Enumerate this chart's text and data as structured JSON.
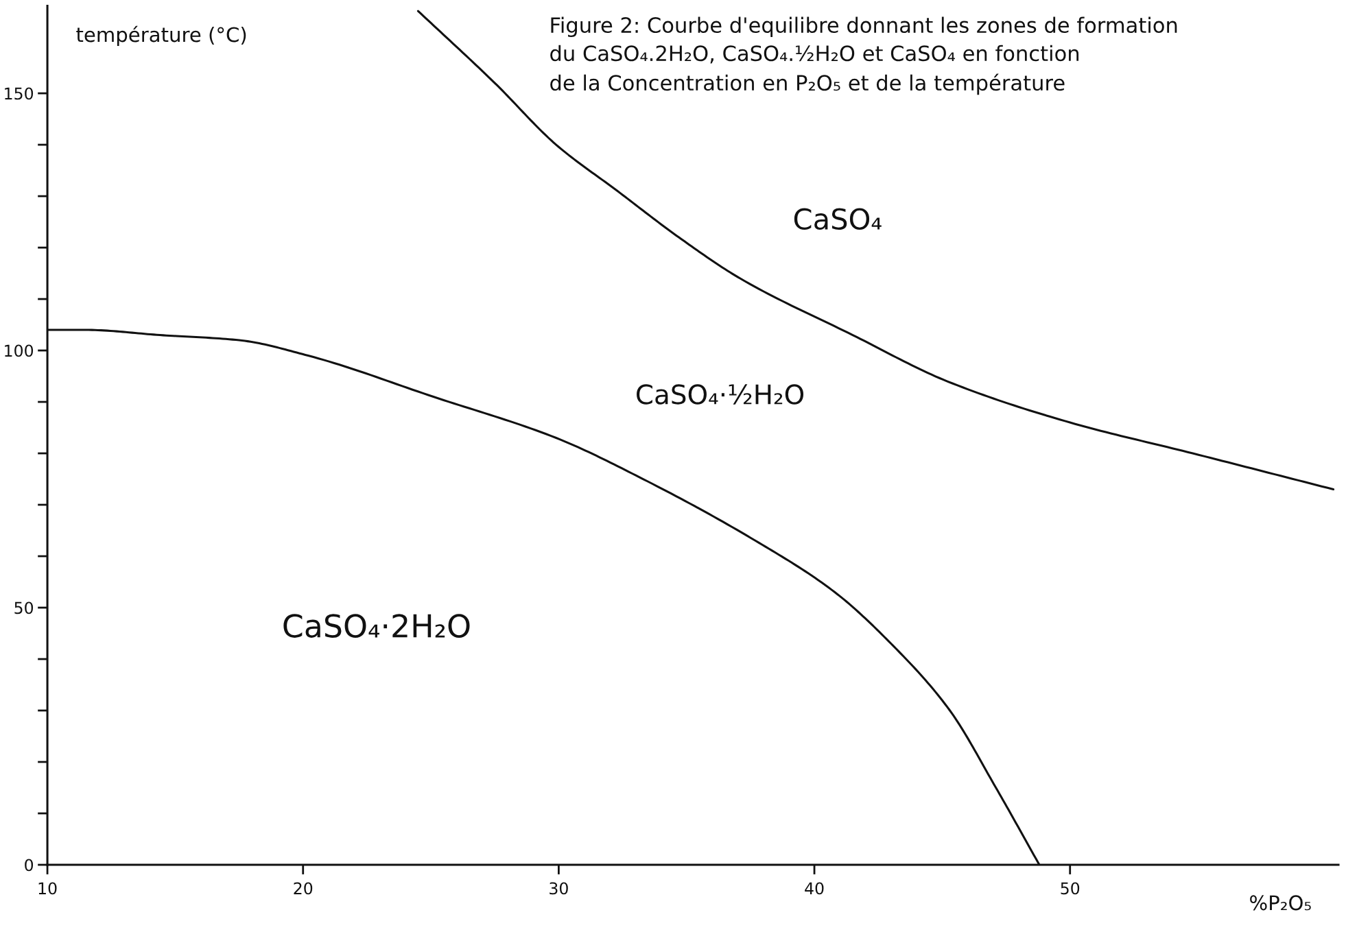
{
  "chart_data": {
    "type": "line",
    "title": "Figure 2: Courbe d'equilibre donnant les zones de formation\ndu CaSO₄.2H₂O, CaSO₄.½H₂O et CaSO₄ en fonction\nde la Concentration en P₂O₅ et de la température",
    "xlabel": "%P₂O₅",
    "ylabel": "température (°C)",
    "xlim": [
      10,
      60.5
    ],
    "ylim": [
      0,
      167
    ],
    "xticks": [
      10,
      20,
      30,
      40,
      50
    ],
    "yticks": [
      0,
      {
        "value": 10,
        "label": null
      },
      {
        "value": 20,
        "label": null
      },
      {
        "value": 30,
        "label": null
      },
      {
        "value": 40,
        "label": null
      },
      50,
      {
        "value": 60,
        "label": null
      },
      {
        "value": 70,
        "label": null
      },
      {
        "value": 80,
        "label": null
      },
      {
        "value": 90,
        "label": null
      },
      100,
      {
        "value": 110,
        "label": null
      },
      {
        "value": 120,
        "label": null
      },
      {
        "value": 130,
        "label": null
      },
      {
        "value": 140,
        "label": null
      },
      150
    ],
    "series": [
      {
        "color": "#111111",
        "x": [
          24.5,
          27.5,
          29.9,
          32.3,
          34.7,
          37.1,
          41.5,
          45.2,
          50.0,
          54.8,
          60.3
        ],
        "values": [
          166,
          152,
          140,
          131,
          122,
          114,
          103,
          94,
          86,
          80,
          73
        ]
      },
      {
        "color": "#111111",
        "x": [
          10,
          11.5,
          14.4,
          17.5,
          20.2,
          25.1,
          29.9,
          33.3,
          37.7,
          40.8,
          43.0,
          45.3,
          47.1,
          48.8
        ],
        "values": [
          104,
          104,
          103,
          102,
          99,
          91,
          83,
          75,
          63,
          53,
          43,
          30,
          15,
          0
        ]
      }
    ],
    "annotations": [
      "CaSO₄",
      "CaSO₄·½H₂O",
      "CaSO₄·2H₂O"
    ]
  }
}
